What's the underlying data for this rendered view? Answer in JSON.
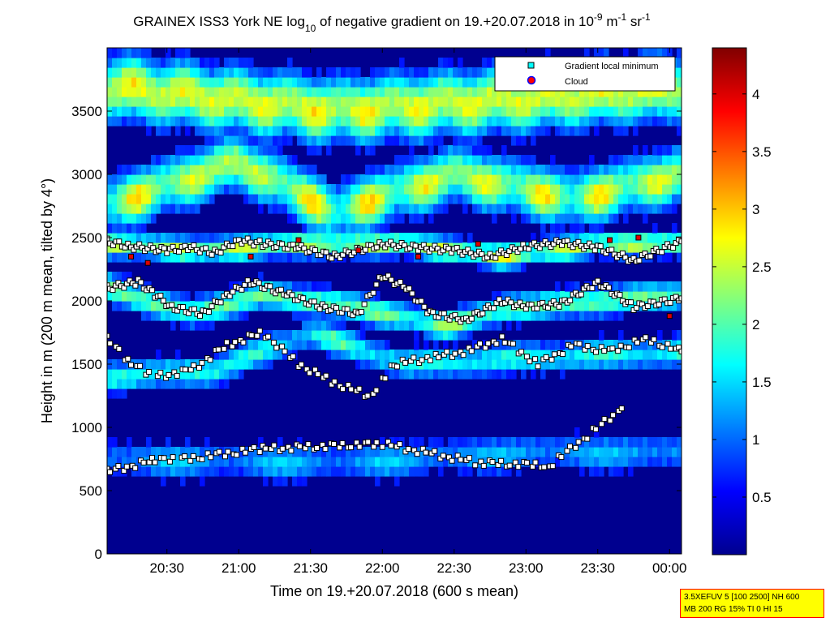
{
  "chart_data": {
    "type": "heatmap",
    "title_parts": {
      "base": "GRAINEX ISS3 York NE log",
      "sub": "10",
      "mid": " of negative gradient on 19.+20.07.2018 in 10",
      "exp1": "-9",
      "mid2": " m",
      "exp2": "-1",
      "mid3": " sr",
      "exp3": "-1"
    },
    "xlabel": "Time on 19.+20.07.2018 (600 s mean)",
    "ylabel": "Height in m (200 m mean, tilted by 4°)",
    "x_range_minutes": [
      1205,
      1445
    ],
    "x_ticks": [
      {
        "minutes": 1230,
        "label": "20:30"
      },
      {
        "minutes": 1260,
        "label": "21:00"
      },
      {
        "minutes": 1290,
        "label": "21:30"
      },
      {
        "minutes": 1320,
        "label": "22:00"
      },
      {
        "minutes": 1350,
        "label": "22:30"
      },
      {
        "minutes": 1380,
        "label": "23:00"
      },
      {
        "minutes": 1410,
        "label": "23:30"
      },
      {
        "minutes": 1440,
        "label": "00:00"
      }
    ],
    "ylim": [
      0,
      4000
    ],
    "y_ticks": [
      {
        "value": 0,
        "label": "0"
      },
      {
        "value": 500,
        "label": "500"
      },
      {
        "value": 1000,
        "label": "1000"
      },
      {
        "value": 1500,
        "label": "1500"
      },
      {
        "value": 2000,
        "label": "2000"
      },
      {
        "value": 2500,
        "label": "2500"
      },
      {
        "value": 3000,
        "label": "3000"
      },
      {
        "value": 3500,
        "label": "3500"
      }
    ],
    "colorbar": {
      "colormap": "jet",
      "range": [
        0,
        4.4
      ],
      "ticks": [
        {
          "value": 0.5,
          "label": "0.5"
        },
        {
          "value": 1,
          "label": "1"
        },
        {
          "value": 1.5,
          "label": "1.5"
        },
        {
          "value": 2,
          "label": "2"
        },
        {
          "value": 2.5,
          "label": "2.5"
        },
        {
          "value": 3,
          "label": "3"
        },
        {
          "value": 3.5,
          "label": "3.5"
        },
        {
          "value": 4,
          "label": "4"
        }
      ]
    },
    "legend": {
      "position": "top-right",
      "entries": [
        {
          "name": "Gradient local minimum",
          "marker": "square",
          "color": "#00ffff"
        },
        {
          "name": "Cloud",
          "marker": "circle",
          "color": "#ff0000"
        }
      ]
    },
    "layers": [
      {
        "name": "surface",
        "center": [
          1205,
          250
        ],
        "value": 0.3
      },
      {
        "name": "low-aerosol",
        "center_ramp": [
          [
            1205,
            750
          ],
          [
            1300,
            720
          ],
          [
            1380,
            800
          ],
          [
            1445,
            800
          ]
        ],
        "value": 1.4
      },
      {
        "name": "mid-1",
        "center_ramp": [
          [
            1205,
            1400
          ],
          [
            1250,
            1450
          ],
          [
            1290,
            1750
          ],
          [
            1330,
            1500
          ],
          [
            1380,
            1550
          ],
          [
            1445,
            1600
          ]
        ],
        "value": 1.9
      },
      {
        "name": "mid-2",
        "center_ramp": [
          [
            1205,
            2100
          ],
          [
            1240,
            1900
          ],
          [
            1270,
            2050
          ],
          [
            1310,
            1950
          ],
          [
            1345,
            1800
          ],
          [
            1375,
            1950
          ],
          [
            1410,
            2000
          ],
          [
            1445,
            2050
          ]
        ],
        "value": 2.3
      },
      {
        "name": "upper-1",
        "center_ramp": [
          [
            1205,
            2450
          ],
          [
            1245,
            2400
          ],
          [
            1285,
            2450
          ],
          [
            1330,
            2450
          ],
          [
            1370,
            2350
          ],
          [
            1410,
            2450
          ],
          [
            1445,
            2450
          ]
        ],
        "value": 2.6
      },
      {
        "name": "upper-2",
        "center_ramp": [
          [
            1205,
            2750
          ],
          [
            1260,
            3100
          ],
          [
            1300,
            2700
          ],
          [
            1350,
            3000
          ],
          [
            1400,
            2800
          ],
          [
            1445,
            3000
          ]
        ],
        "value": 2.7
      },
      {
        "name": "top",
        "center_ramp": [
          [
            1205,
            3700
          ],
          [
            1300,
            3500
          ],
          [
            1380,
            3600
          ],
          [
            1445,
            3700
          ]
        ],
        "value": 2.9
      }
    ],
    "minima_series": [
      {
        "name": "upper",
        "points": [
          [
            1205,
            2470
          ],
          [
            1215,
            2430
          ],
          [
            1230,
            2400
          ],
          [
            1240,
            2420
          ],
          [
            1250,
            2380
          ],
          [
            1260,
            2480
          ],
          [
            1270,
            2450
          ],
          [
            1285,
            2420
          ],
          [
            1300,
            2350
          ],
          [
            1320,
            2450
          ],
          [
            1335,
            2420
          ],
          [
            1350,
            2400
          ],
          [
            1365,
            2350
          ],
          [
            1380,
            2430
          ],
          [
            1395,
            2460
          ],
          [
            1410,
            2420
          ],
          [
            1425,
            2320
          ],
          [
            1445,
            2470
          ]
        ]
      },
      {
        "name": "middle",
        "points": [
          [
            1205,
            2100
          ],
          [
            1218,
            2150
          ],
          [
            1225,
            2050
          ],
          [
            1232,
            1950
          ],
          [
            1245,
            1900
          ],
          [
            1255,
            2050
          ],
          [
            1265,
            2150
          ],
          [
            1280,
            2050
          ],
          [
            1295,
            1950
          ],
          [
            1310,
            1900
          ],
          [
            1320,
            2200
          ],
          [
            1330,
            2100
          ],
          [
            1340,
            1900
          ],
          [
            1355,
            1850
          ],
          [
            1370,
            2000
          ],
          [
            1380,
            1950
          ],
          [
            1395,
            1980
          ],
          [
            1410,
            2150
          ],
          [
            1425,
            1950
          ],
          [
            1445,
            2020
          ]
        ]
      },
      {
        "name": "lower",
        "points": [
          [
            1205,
            1700
          ],
          [
            1215,
            1500
          ],
          [
            1225,
            1400
          ],
          [
            1240,
            1450
          ],
          [
            1255,
            1650
          ],
          [
            1270,
            1750
          ],
          [
            1285,
            1500
          ],
          [
            1300,
            1350
          ],
          [
            1315,
            1250
          ],
          [
            1325,
            1500
          ],
          [
            1340,
            1550
          ],
          [
            1355,
            1600
          ],
          [
            1370,
            1700
          ],
          [
            1385,
            1500
          ],
          [
            1400,
            1650
          ],
          [
            1415,
            1600
          ],
          [
            1430,
            1700
          ],
          [
            1445,
            1600
          ]
        ]
      },
      {
        "name": "low",
        "points": [
          [
            1205,
            650
          ],
          [
            1225,
            740
          ],
          [
            1235,
            745
          ],
          [
            1270,
            830
          ],
          [
            1320,
            870
          ],
          [
            1360,
            720
          ],
          [
            1390,
            700
          ],
          [
            1420,
            1150
          ]
        ]
      }
    ],
    "cloud_points": [
      [
        1215,
        2350
      ],
      [
        1222,
        2300
      ],
      [
        1265,
        2350
      ],
      [
        1285,
        2480
      ],
      [
        1310,
        2400
      ],
      [
        1335,
        2350
      ],
      [
        1360,
        2450
      ],
      [
        1415,
        2480
      ],
      [
        1427,
        2500
      ],
      [
        1440,
        1880
      ]
    ]
  },
  "info_box": {
    "line1": "3.5XEFUV 5 [100 2500] NH 600",
    "line2": "MB 200 RG 15% TI 0 HI 15"
  }
}
